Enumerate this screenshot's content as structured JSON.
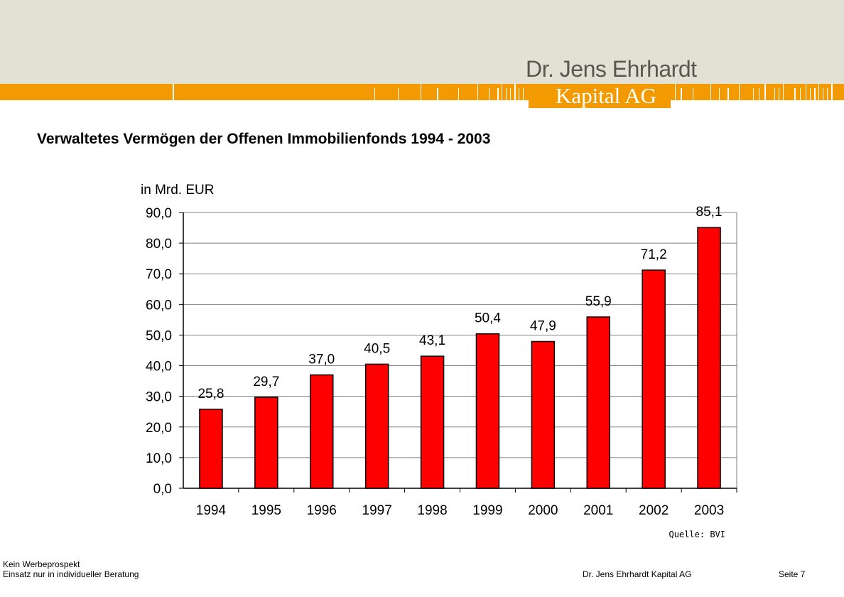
{
  "header": {
    "logo_line1": "Dr. Jens Ehrhardt",
    "logo_line2": "Kapital AG",
    "colors": {
      "background": "#e3e1d4",
      "band": "#f39a00",
      "logo_text": "#5a5750"
    }
  },
  "title": "Verwaltetes Vermögen der Offenen Immobilienfonds 1994 - 2003",
  "chart_data": {
    "type": "bar",
    "unit_label": "in Mrd. EUR",
    "categories": [
      "1994",
      "1995",
      "1996",
      "1997",
      "1998",
      "1999",
      "2000",
      "2001",
      "2002",
      "2003"
    ],
    "values": [
      25.8,
      29.7,
      37.0,
      40.5,
      43.1,
      50.4,
      47.9,
      55.9,
      71.2,
      85.1
    ],
    "data_labels": [
      "25,8",
      "29,7",
      "37,0",
      "40,5",
      "43,1",
      "50,4",
      "47,9",
      "55,9",
      "71,2",
      "85,1"
    ],
    "y_ticks": [
      0,
      10,
      20,
      30,
      40,
      50,
      60,
      70,
      80,
      90
    ],
    "y_tick_labels": [
      "0,0",
      "10,0",
      "20,0",
      "30,0",
      "40,0",
      "50,0",
      "60,0",
      "70,0",
      "80,0",
      "90,0"
    ],
    "ylim": [
      0,
      90
    ],
    "grid": true,
    "legend": "none",
    "bar_color": "#ff0000",
    "source": "Quelle: BVI"
  },
  "footer": {
    "note_line1": "Kein Werbeprospekt",
    "note_line2": "Einsatz nur in individueller Beratung",
    "company": "Dr. Jens Ehrhardt Kapital AG",
    "page": "Seite 7"
  }
}
